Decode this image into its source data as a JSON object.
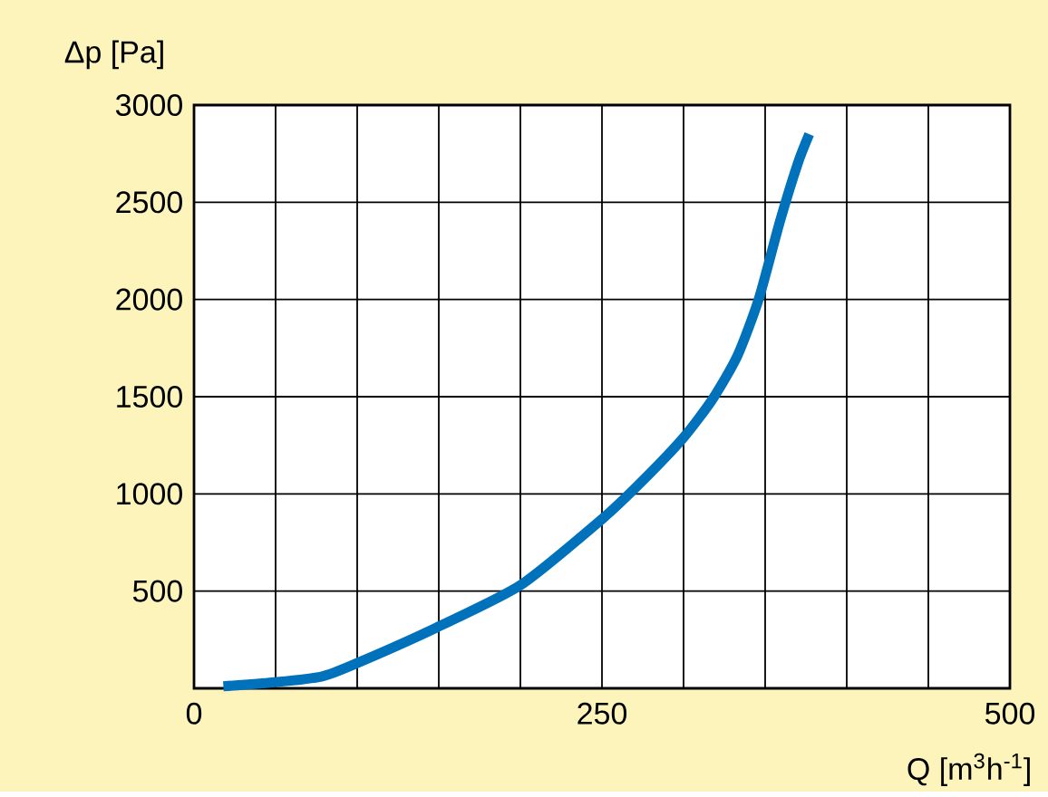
{
  "chart_data": {
    "type": "line",
    "xlabel": "Q [m$^{3}$h$^{-1}$]",
    "ylabel": "Δp [Pa]",
    "series": [
      {
        "color": "#0072bc",
        "x": [
          18,
          48,
          78,
          100,
          148,
          200,
          250,
          274,
          300,
          318,
          333,
          346,
          359,
          370,
          377
        ],
        "values": [
          10,
          30,
          60,
          130,
          310,
          530,
          870,
          1060,
          1290,
          1490,
          1710,
          2000,
          2400,
          2700,
          2850
        ]
      }
    ],
    "xlim": [
      0,
      500
    ],
    "ylim": [
      0,
      3000
    ],
    "xticks": [
      0,
      {
        "value": 50,
        "label": null
      },
      {
        "value": 100,
        "label": null
      },
      {
        "value": 150,
        "label": null
      },
      {
        "value": 200,
        "label": null
      },
      250,
      {
        "value": 300,
        "label": null
      },
      {
        "value": 350,
        "label": null
      },
      {
        "value": 400,
        "label": null
      },
      {
        "value": 450,
        "label": null
      },
      500
    ],
    "yticks": [
      {
        "value": 0,
        "label": null
      },
      500,
      1000,
      1500,
      2000,
      2500,
      3000
    ],
    "grid": true,
    "marker": "none",
    "line_style": "solid"
  }
}
